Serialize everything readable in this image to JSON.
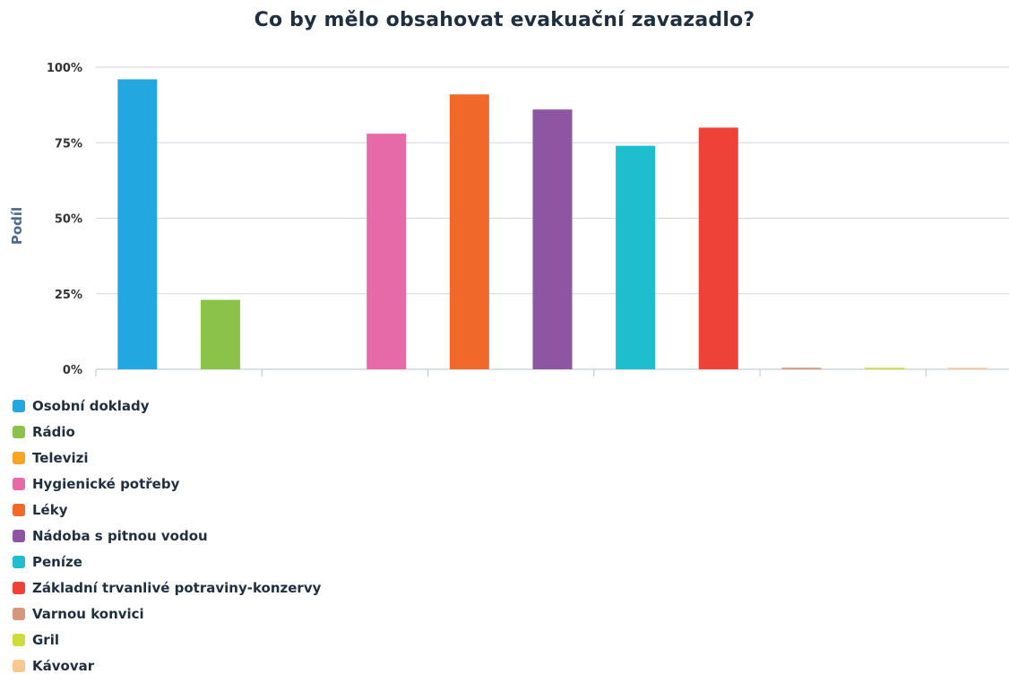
{
  "chart_data": {
    "type": "bar",
    "title": "Co by mělo obsahovat evakuační zavazadlo?",
    "xlabel": "",
    "ylabel": "Podíl",
    "ylim": [
      0,
      100
    ],
    "yticks": [
      "0%",
      "25%",
      "50%",
      "75%",
      "100%"
    ],
    "grid": true,
    "legend_position": "bottom-left",
    "categories": [
      "Osobní doklady",
      "Rádio",
      "Televizi",
      "Hygienické potřeby",
      "Léky",
      "Nádoba s pitnou vodou",
      "Peníze",
      "Základní trvanlivé potraviny-konzervy",
      "Varnou konvici",
      "Gril",
      "Kávovar"
    ],
    "values": [
      96,
      23,
      0,
      78,
      91,
      86,
      74,
      80,
      0.5,
      0.5,
      0.5
    ],
    "colors": [
      "#22a7e0",
      "#8bc34a",
      "#f5a623",
      "#e56aa7",
      "#f0682a",
      "#8e55a2",
      "#1fbecf",
      "#ee4137",
      "#d4977a",
      "#cddc39",
      "#f8c98e"
    ]
  }
}
